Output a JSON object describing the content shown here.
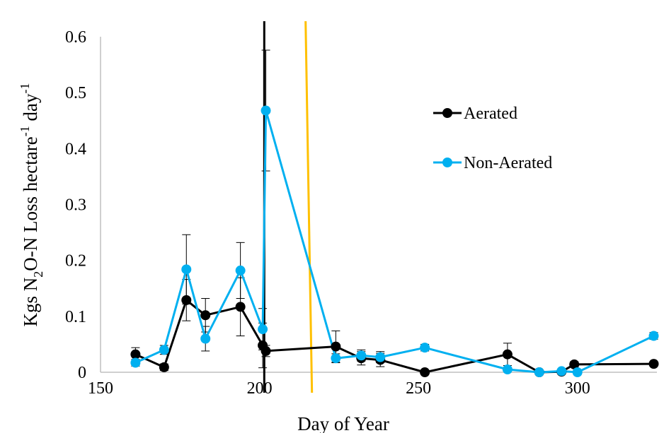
{
  "chart_data": {
    "type": "line",
    "title": "",
    "xlabel": "Day of Year",
    "ylabel": {
      "part1": "Kgs N",
      "sub": "2",
      "part2": "O-N Loss hectare",
      "sup1": "-1",
      "part3": " day",
      "sup2": "-1"
    },
    "xlim": [
      150,
      325
    ],
    "ylim": [
      0,
      0.6
    ],
    "xticks": [
      "150",
      "200",
      "250",
      "300"
    ],
    "yticks": [
      "0",
      "0.1",
      "0.2",
      "0.3",
      "0.4",
      "0.5",
      "0.6"
    ],
    "grid": false,
    "legend_position": "right",
    "series": [
      {
        "name": "Aerated",
        "color": "#000000",
        "x": [
          161,
          170,
          177,
          183,
          194,
          201,
          202,
          224,
          232,
          238,
          252,
          278,
          288,
          295,
          299,
          324
        ],
        "y": [
          0.032,
          0.009,
          0.129,
          0.102,
          0.117,
          0.048,
          0.038,
          0.046,
          0.025,
          0.022,
          0.0,
          0.032,
          0.0,
          0.001,
          0.014,
          0.015
        ],
        "err": [
          0.012,
          0.006,
          0.037,
          0.03,
          0.052,
          0.04,
          0.01,
          0.028,
          0.012,
          0.012,
          0.004,
          0.02,
          0.004,
          0.004,
          0.005,
          0.004
        ]
      },
      {
        "name": "Non-Aerated",
        "color": "#00b0f0",
        "x": [
          161,
          170,
          177,
          183,
          194,
          201,
          202,
          224,
          232,
          238,
          252,
          278,
          288,
          295,
          300,
          324
        ],
        "y": [
          0.017,
          0.04,
          0.184,
          0.06,
          0.182,
          0.077,
          0.468,
          0.025,
          0.03,
          0.027,
          0.044,
          0.005,
          0.0,
          0.002,
          0.0,
          0.065
        ],
        "err": [
          0.006,
          0.008,
          0.062,
          0.022,
          0.05,
          0.037,
          0.108,
          0.008,
          0.01,
          0.01,
          0.006,
          0.003,
          0.002,
          0.003,
          0.002,
          0.006
        ]
      }
    ],
    "reference_lines": [
      {
        "color": "#000000",
        "x_top": 201.5,
        "x_bottom": 201.5
      },
      {
        "color": "#ffc000",
        "x_top": 214.5,
        "x_bottom": 216.5
      }
    ]
  }
}
